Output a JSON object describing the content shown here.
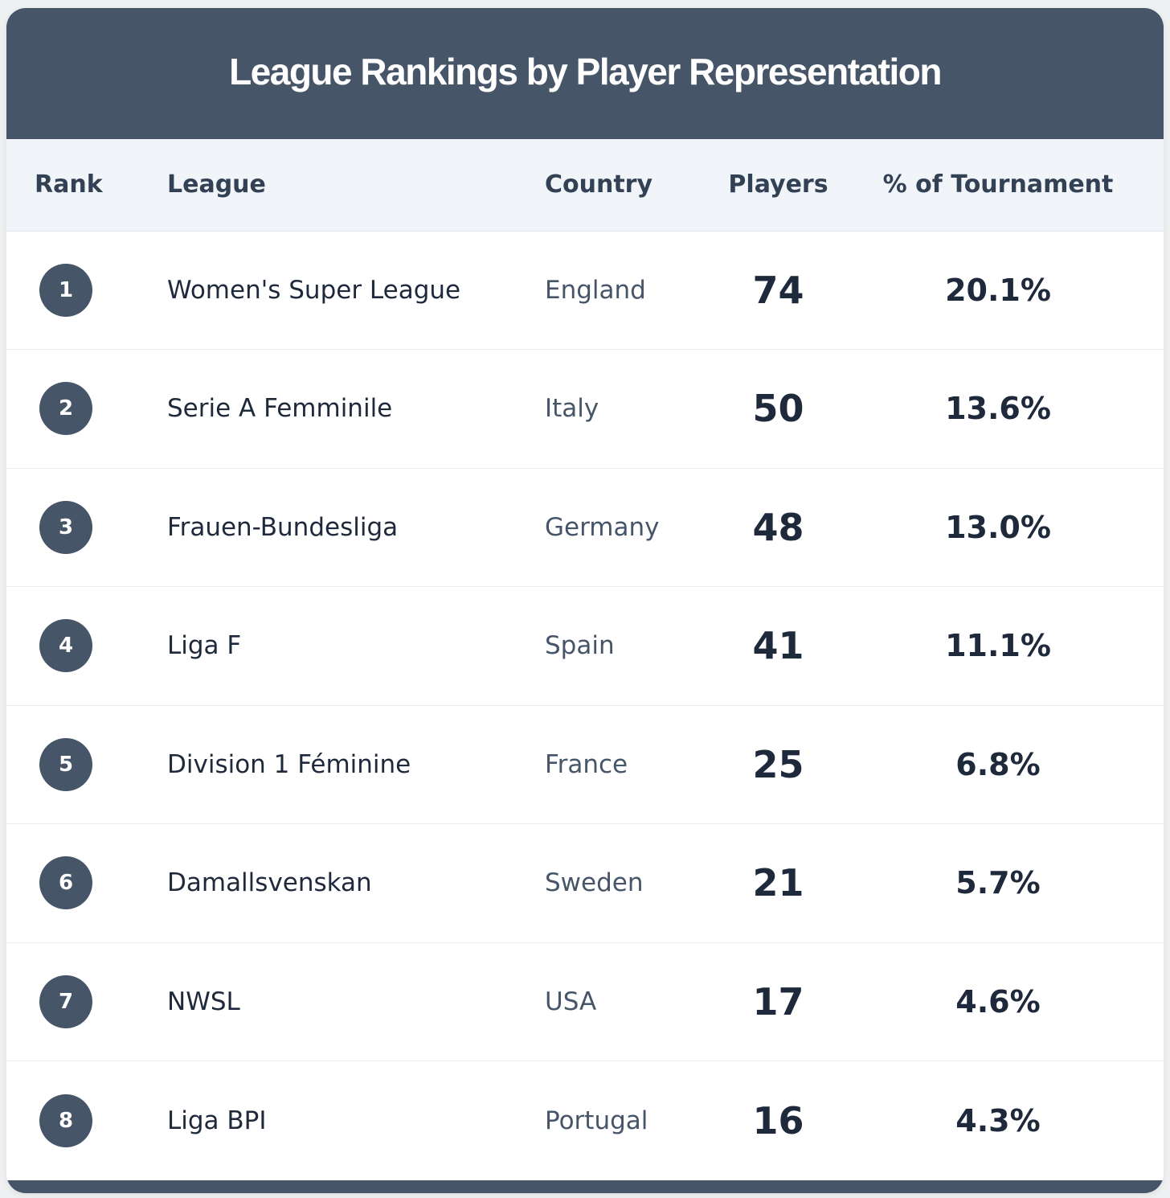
{
  "title": "League Rankings by Player Representation",
  "columns": {
    "rank": "Rank",
    "league": "League",
    "country": "Country",
    "players": "Players",
    "pct": "% of Tournament"
  },
  "rows": [
    {
      "rank": "1",
      "league": "Women's Super League",
      "country": "England",
      "players": "74",
      "pct": "20.1%"
    },
    {
      "rank": "2",
      "league": "Serie A Femminile",
      "country": "Italy",
      "players": "50",
      "pct": "13.6%"
    },
    {
      "rank": "3",
      "league": "Frauen-Bundesliga",
      "country": "Germany",
      "players": "48",
      "pct": "13.0%"
    },
    {
      "rank": "4",
      "league": "Liga F",
      "country": "Spain",
      "players": "41",
      "pct": "11.1%"
    },
    {
      "rank": "5",
      "league": "Division 1 Féminine",
      "country": "France",
      "players": "25",
      "pct": "6.8%"
    },
    {
      "rank": "6",
      "league": "Damallsvenskan",
      "country": "Sweden",
      "players": "21",
      "pct": "5.7%"
    },
    {
      "rank": "7",
      "league": "NWSL",
      "country": "USA",
      "players": "17",
      "pct": "4.6%"
    },
    {
      "rank": "8",
      "league": "Liga BPI",
      "country": "Portugal",
      "players": "16",
      "pct": "4.3%"
    }
  ],
  "colors": {
    "header_bg": "#475569",
    "column_header_bg": "#f1f5f9",
    "badge_bg": "#475569",
    "text_primary": "#1e293b",
    "text_secondary": "#475569"
  }
}
